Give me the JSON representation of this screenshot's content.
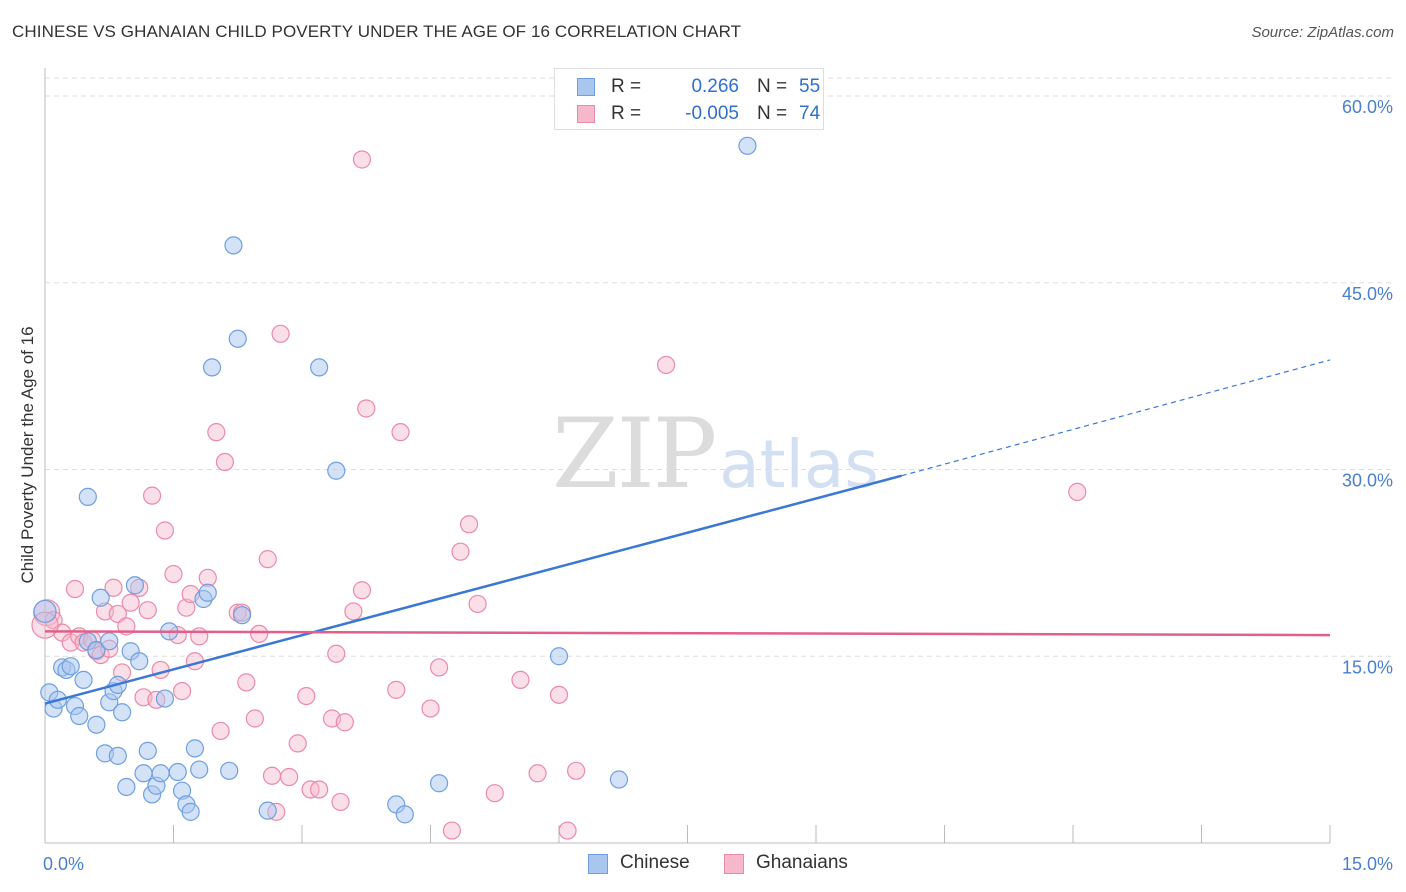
{
  "header": {
    "title": "CHINESE VS GHANAIAN CHILD POVERTY UNDER THE AGE OF 16 CORRELATION CHART",
    "source": "Source: ZipAtlas.com"
  },
  "watermark": {
    "zip": "ZIP",
    "atlas": "atlas"
  },
  "legend": {
    "rows": [
      {
        "r_label": "R =",
        "r_value": "0.266",
        "n_label": "N =",
        "n_value": "55",
        "color": "#a9c6ef",
        "stroke": "#6f9fe0"
      },
      {
        "r_label": "R =",
        "r_value": "-0.005",
        "n_label": "N =",
        "n_value": "74",
        "color": "#f6b9cc",
        "stroke": "#ea8aa8"
      }
    ],
    "bottom": [
      {
        "label": "Chinese",
        "color": "#a9c6ef",
        "stroke": "#6f9fe0"
      },
      {
        "label": "Ghanaians",
        "color": "#f6b9cc",
        "stroke": "#ea8aa8"
      }
    ]
  },
  "colors": {
    "blue_fill": "#a9c6ef",
    "blue_stroke": "#6f9fe0",
    "blue_line": "#3a78d4",
    "pink_fill": "#f6b9cc",
    "pink_stroke": "#ea8aa8",
    "pink_line": "#e35f8a",
    "grid": "#dddddd",
    "tick_label": "#4a7fcf"
  },
  "chart_data": {
    "type": "scatter",
    "title": "CHINESE VS GHANAIAN CHILD POVERTY UNDER THE AGE OF 16 CORRELATION CHART",
    "xlabel": "",
    "ylabel": "Child Poverty Under the Age of 16",
    "xlim": [
      0,
      15
    ],
    "ylim": [
      0,
      60
    ],
    "x_tick_labels": [
      "0.0%",
      "15.0%"
    ],
    "y_ticks": [
      15,
      30,
      45,
      60
    ],
    "y_tick_labels": [
      "15.0%",
      "30.0%",
      "45.0%",
      "60.0%"
    ],
    "grid": true,
    "series": [
      {
        "name": "Chinese",
        "R": 0.266,
        "N": 55,
        "trend": {
          "x0": 0,
          "y0": 11.2,
          "x1": 10.0,
          "y1": 29.5,
          "dashed_to_x": 15,
          "dashed_to_y": 38.8
        },
        "points": [
          [
            0.05,
            12.1
          ],
          [
            0.1,
            10.8
          ],
          [
            0.15,
            11.5
          ],
          [
            0.2,
            14.1
          ],
          [
            0.25,
            13.9
          ],
          [
            0.3,
            14.2
          ],
          [
            0.35,
            11.0
          ],
          [
            0.4,
            10.2
          ],
          [
            0.45,
            13.1
          ],
          [
            0.5,
            16.2
          ],
          [
            0.5,
            27.8
          ],
          [
            0.6,
            15.5
          ],
          [
            0.6,
            9.5
          ],
          [
            0.65,
            19.7
          ],
          [
            0.7,
            7.2
          ],
          [
            0.75,
            11.3
          ],
          [
            0.75,
            16.2
          ],
          [
            0.8,
            12.2
          ],
          [
            0.85,
            7.0
          ],
          [
            0.85,
            12.7
          ],
          [
            0.9,
            10.5
          ],
          [
            0.95,
            4.5
          ],
          [
            1.0,
            15.4
          ],
          [
            1.05,
            20.7
          ],
          [
            1.1,
            14.6
          ],
          [
            1.15,
            5.6
          ],
          [
            1.2,
            7.4
          ],
          [
            1.25,
            3.9
          ],
          [
            1.3,
            4.6
          ],
          [
            1.35,
            5.6
          ],
          [
            1.4,
            11.6
          ],
          [
            1.45,
            17.0
          ],
          [
            1.55,
            5.7
          ],
          [
            1.6,
            4.2
          ],
          [
            1.65,
            3.1
          ],
          [
            1.7,
            2.5
          ],
          [
            1.75,
            7.6
          ],
          [
            1.8,
            5.9
          ],
          [
            1.85,
            19.6
          ],
          [
            1.9,
            20.1
          ],
          [
            1.95,
            38.2
          ],
          [
            2.15,
            5.8
          ],
          [
            2.2,
            48.0
          ],
          [
            2.25,
            40.5
          ],
          [
            2.3,
            18.3
          ],
          [
            2.6,
            2.6
          ],
          [
            3.2,
            38.2
          ],
          [
            3.4,
            29.9
          ],
          [
            4.1,
            3.1
          ],
          [
            4.2,
            2.3
          ],
          [
            4.6,
            4.8
          ],
          [
            6.0,
            15.0
          ],
          [
            6.7,
            5.1
          ],
          [
            8.2,
            56.0
          ],
          [
            0.0,
            18.6
          ]
        ]
      },
      {
        "name": "Ghanaians",
        "R": -0.005,
        "N": 74,
        "trend": {
          "x0": 0,
          "y0": 17.0,
          "x1": 15,
          "y1": 16.7
        },
        "points": [
          [
            0.02,
            18.5
          ],
          [
            0.1,
            17.9
          ],
          [
            0.2,
            16.9
          ],
          [
            0.3,
            16.1
          ],
          [
            0.35,
            20.4
          ],
          [
            0.4,
            16.6
          ],
          [
            0.45,
            16.1
          ],
          [
            0.55,
            16.3
          ],
          [
            0.6,
            15.4
          ],
          [
            0.65,
            15.1
          ],
          [
            0.7,
            18.6
          ],
          [
            0.75,
            15.6
          ],
          [
            0.8,
            20.5
          ],
          [
            0.85,
            18.4
          ],
          [
            0.9,
            13.7
          ],
          [
            0.95,
            17.4
          ],
          [
            1.0,
            19.3
          ],
          [
            1.1,
            20.5
          ],
          [
            1.15,
            11.7
          ],
          [
            1.2,
            18.7
          ],
          [
            1.25,
            27.9
          ],
          [
            1.3,
            11.5
          ],
          [
            1.35,
            13.9
          ],
          [
            1.4,
            25.1
          ],
          [
            1.5,
            21.6
          ],
          [
            1.55,
            16.7
          ],
          [
            1.6,
            12.2
          ],
          [
            1.65,
            18.9
          ],
          [
            1.7,
            20.0
          ],
          [
            1.75,
            14.6
          ],
          [
            1.8,
            16.6
          ],
          [
            1.9,
            21.3
          ],
          [
            2.0,
            33.0
          ],
          [
            2.05,
            9.0
          ],
          [
            2.1,
            30.6
          ],
          [
            2.25,
            18.5
          ],
          [
            2.3,
            18.5
          ],
          [
            2.35,
            12.9
          ],
          [
            2.45,
            10.0
          ],
          [
            2.5,
            16.8
          ],
          [
            2.6,
            22.8
          ],
          [
            2.65,
            5.4
          ],
          [
            2.7,
            2.5
          ],
          [
            2.75,
            40.9
          ],
          [
            2.85,
            5.3
          ],
          [
            2.95,
            8.0
          ],
          [
            3.05,
            11.8
          ],
          [
            3.1,
            4.3
          ],
          [
            3.2,
            4.3
          ],
          [
            3.35,
            10.0
          ],
          [
            3.4,
            15.2
          ],
          [
            3.45,
            3.3
          ],
          [
            3.5,
            9.7
          ],
          [
            3.6,
            18.6
          ],
          [
            3.7,
            20.3
          ],
          [
            3.7,
            54.9
          ],
          [
            3.75,
            34.9
          ],
          [
            4.1,
            12.3
          ],
          [
            4.15,
            33.0
          ],
          [
            4.5,
            10.8
          ],
          [
            4.6,
            14.1
          ],
          [
            4.75,
            1.0
          ],
          [
            4.85,
            23.4
          ],
          [
            4.95,
            25.6
          ],
          [
            5.05,
            19.2
          ],
          [
            5.25,
            4.0
          ],
          [
            5.55,
            13.1
          ],
          [
            5.75,
            5.6
          ],
          [
            6.0,
            11.9
          ],
          [
            6.1,
            1.0
          ],
          [
            6.2,
            5.8
          ],
          [
            7.25,
            38.4
          ],
          [
            12.05,
            28.2
          ],
          [
            0.0,
            17.5
          ]
        ]
      }
    ]
  }
}
